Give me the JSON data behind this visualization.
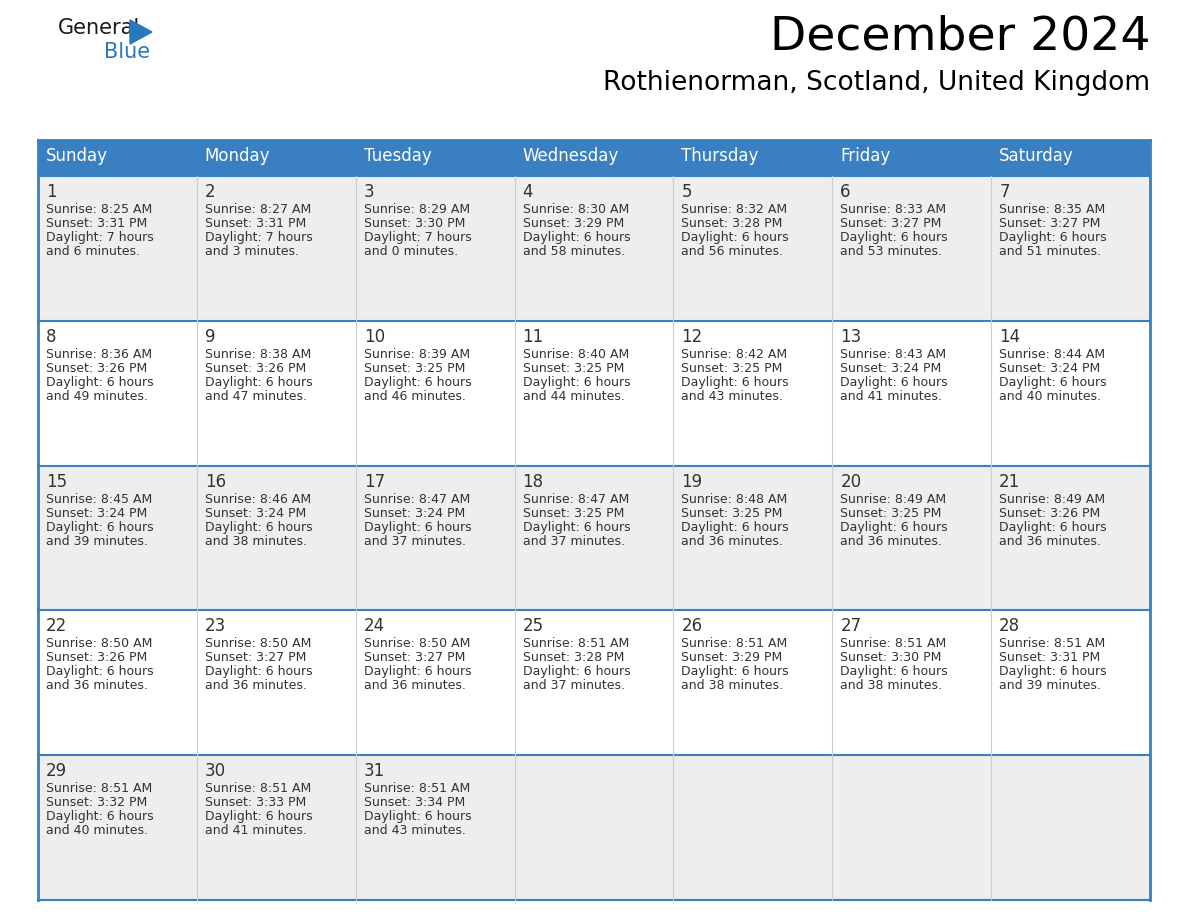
{
  "title": "December 2024",
  "subtitle": "Rothienorman, Scotland, United Kingdom",
  "header_bg_color": "#3a7fc1",
  "header_text_color": "#ffffff",
  "row_bg_colors": [
    "#eeeeee",
    "#ffffff",
    "#eeeeee",
    "#ffffff",
    "#eeeeee"
  ],
  "day_names": [
    "Sunday",
    "Monday",
    "Tuesday",
    "Wednesday",
    "Thursday",
    "Friday",
    "Saturday"
  ],
  "title_fontsize": 34,
  "subtitle_fontsize": 19,
  "header_fontsize": 12,
  "day_num_fontsize": 12,
  "cell_fontsize": 9,
  "logo_color1": "#1a1a1a",
  "logo_color2": "#2878c0",
  "logo_triangle_color": "#2878c0",
  "grid_color": "#3a7fc1",
  "text_color": "#333333",
  "calendar_data": [
    [
      {
        "day": 1,
        "sunrise": "8:25 AM",
        "sunset": "3:31 PM",
        "daylight": "7 hours and 6 minutes"
      },
      {
        "day": 2,
        "sunrise": "8:27 AM",
        "sunset": "3:31 PM",
        "daylight": "7 hours and 3 minutes"
      },
      {
        "day": 3,
        "sunrise": "8:29 AM",
        "sunset": "3:30 PM",
        "daylight": "7 hours and 0 minutes"
      },
      {
        "day": 4,
        "sunrise": "8:30 AM",
        "sunset": "3:29 PM",
        "daylight": "6 hours and 58 minutes"
      },
      {
        "day": 5,
        "sunrise": "8:32 AM",
        "sunset": "3:28 PM",
        "daylight": "6 hours and 56 minutes"
      },
      {
        "day": 6,
        "sunrise": "8:33 AM",
        "sunset": "3:27 PM",
        "daylight": "6 hours and 53 minutes"
      },
      {
        "day": 7,
        "sunrise": "8:35 AM",
        "sunset": "3:27 PM",
        "daylight": "6 hours and 51 minutes"
      }
    ],
    [
      {
        "day": 8,
        "sunrise": "8:36 AM",
        "sunset": "3:26 PM",
        "daylight": "6 hours and 49 minutes"
      },
      {
        "day": 9,
        "sunrise": "8:38 AM",
        "sunset": "3:26 PM",
        "daylight": "6 hours and 47 minutes"
      },
      {
        "day": 10,
        "sunrise": "8:39 AM",
        "sunset": "3:25 PM",
        "daylight": "6 hours and 46 minutes"
      },
      {
        "day": 11,
        "sunrise": "8:40 AM",
        "sunset": "3:25 PM",
        "daylight": "6 hours and 44 minutes"
      },
      {
        "day": 12,
        "sunrise": "8:42 AM",
        "sunset": "3:25 PM",
        "daylight": "6 hours and 43 minutes"
      },
      {
        "day": 13,
        "sunrise": "8:43 AM",
        "sunset": "3:24 PM",
        "daylight": "6 hours and 41 minutes"
      },
      {
        "day": 14,
        "sunrise": "8:44 AM",
        "sunset": "3:24 PM",
        "daylight": "6 hours and 40 minutes"
      }
    ],
    [
      {
        "day": 15,
        "sunrise": "8:45 AM",
        "sunset": "3:24 PM",
        "daylight": "6 hours and 39 minutes"
      },
      {
        "day": 16,
        "sunrise": "8:46 AM",
        "sunset": "3:24 PM",
        "daylight": "6 hours and 38 minutes"
      },
      {
        "day": 17,
        "sunrise": "8:47 AM",
        "sunset": "3:24 PM",
        "daylight": "6 hours and 37 minutes"
      },
      {
        "day": 18,
        "sunrise": "8:47 AM",
        "sunset": "3:25 PM",
        "daylight": "6 hours and 37 minutes"
      },
      {
        "day": 19,
        "sunrise": "8:48 AM",
        "sunset": "3:25 PM",
        "daylight": "6 hours and 36 minutes"
      },
      {
        "day": 20,
        "sunrise": "8:49 AM",
        "sunset": "3:25 PM",
        "daylight": "6 hours and 36 minutes"
      },
      {
        "day": 21,
        "sunrise": "8:49 AM",
        "sunset": "3:26 PM",
        "daylight": "6 hours and 36 minutes"
      }
    ],
    [
      {
        "day": 22,
        "sunrise": "8:50 AM",
        "sunset": "3:26 PM",
        "daylight": "6 hours and 36 minutes"
      },
      {
        "day": 23,
        "sunrise": "8:50 AM",
        "sunset": "3:27 PM",
        "daylight": "6 hours and 36 minutes"
      },
      {
        "day": 24,
        "sunrise": "8:50 AM",
        "sunset": "3:27 PM",
        "daylight": "6 hours and 36 minutes"
      },
      {
        "day": 25,
        "sunrise": "8:51 AM",
        "sunset": "3:28 PM",
        "daylight": "6 hours and 37 minutes"
      },
      {
        "day": 26,
        "sunrise": "8:51 AM",
        "sunset": "3:29 PM",
        "daylight": "6 hours and 38 minutes"
      },
      {
        "day": 27,
        "sunrise": "8:51 AM",
        "sunset": "3:30 PM",
        "daylight": "6 hours and 38 minutes"
      },
      {
        "day": 28,
        "sunrise": "8:51 AM",
        "sunset": "3:31 PM",
        "daylight": "6 hours and 39 minutes"
      }
    ],
    [
      {
        "day": 29,
        "sunrise": "8:51 AM",
        "sunset": "3:32 PM",
        "daylight": "6 hours and 40 minutes"
      },
      {
        "day": 30,
        "sunrise": "8:51 AM",
        "sunset": "3:33 PM",
        "daylight": "6 hours and 41 minutes"
      },
      {
        "day": 31,
        "sunrise": "8:51 AM",
        "sunset": "3:34 PM",
        "daylight": "6 hours and 43 minutes"
      },
      null,
      null,
      null,
      null
    ]
  ]
}
